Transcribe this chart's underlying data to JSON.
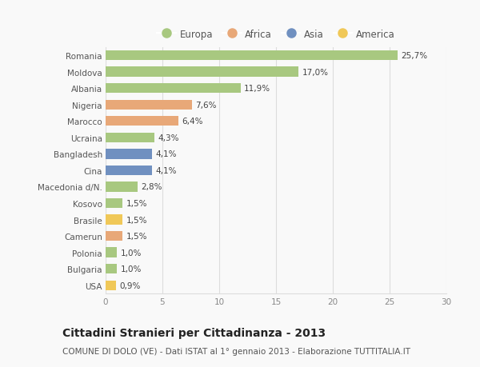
{
  "countries": [
    "Romania",
    "Moldova",
    "Albania",
    "Nigeria",
    "Marocco",
    "Ucraina",
    "Bangladesh",
    "Cina",
    "Macedonia d/N.",
    "Kosovo",
    "Brasile",
    "Camerun",
    "Polonia",
    "Bulgaria",
    "USA"
  ],
  "values": [
    25.7,
    17.0,
    11.9,
    7.6,
    6.4,
    4.3,
    4.1,
    4.1,
    2.8,
    1.5,
    1.5,
    1.5,
    1.0,
    1.0,
    0.9
  ],
  "labels": [
    "25,7%",
    "17,0%",
    "11,9%",
    "7,6%",
    "6,4%",
    "4,3%",
    "4,1%",
    "4,1%",
    "2,8%",
    "1,5%",
    "1,5%",
    "1,5%",
    "1,0%",
    "1,0%",
    "0,9%"
  ],
  "continent": [
    "Europa",
    "Europa",
    "Europa",
    "Africa",
    "Africa",
    "Europa",
    "Asia",
    "Asia",
    "Europa",
    "Europa",
    "America",
    "Africa",
    "Europa",
    "Europa",
    "America"
  ],
  "colors": {
    "Europa": "#a8c880",
    "Africa": "#e8a878",
    "Asia": "#7090c0",
    "America": "#f0c858"
  },
  "xlim": [
    0,
    30
  ],
  "xticks": [
    0,
    5,
    10,
    15,
    20,
    25,
    30
  ],
  "title": "Cittadini Stranieri per Cittadinanza - 2013",
  "subtitle": "COMUNE DI DOLO (VE) - Dati ISTAT al 1° gennaio 2013 - Elaborazione TUTTITALIA.IT",
  "background_color": "#f9f9f9",
  "grid_color": "#dddddd",
  "bar_height": 0.6,
  "title_fontsize": 10,
  "subtitle_fontsize": 7.5,
  "label_fontsize": 7.5,
  "tick_fontsize": 7.5,
  "legend_fontsize": 8.5
}
